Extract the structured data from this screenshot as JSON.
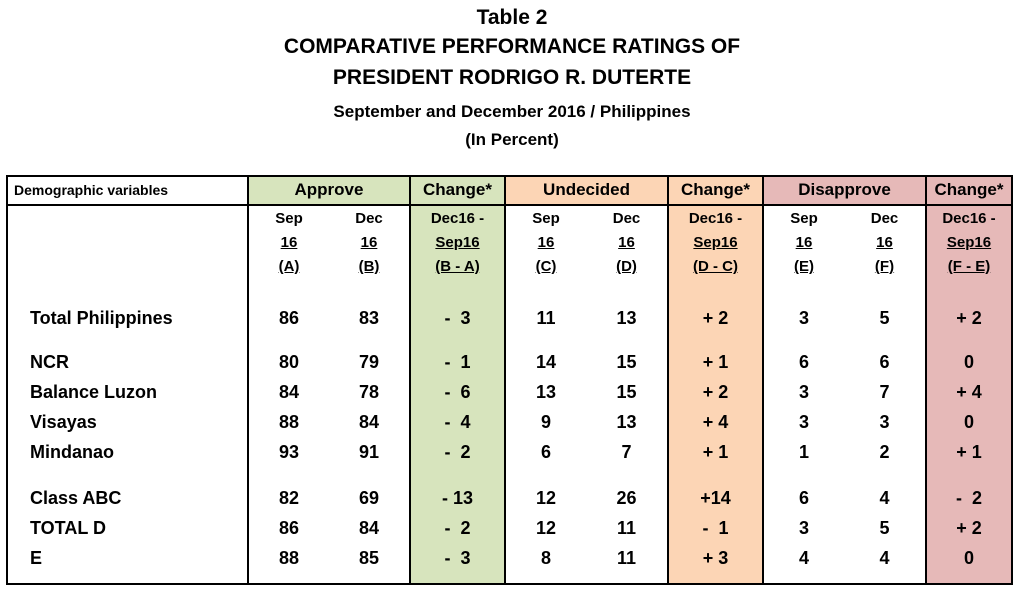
{
  "title": {
    "line1": "Table 2",
    "line2": "COMPARATIVE PERFORMANCE RATINGS OF",
    "line3": "PRESIDENT RODRIGO R. DUTERTE",
    "line4": "September and December 2016 / Philippines",
    "line5": "(In Percent)"
  },
  "colors": {
    "approve": "#d7e4bd",
    "undecided": "#fcd5b5",
    "disapprove": "#e6b9b8"
  },
  "header": {
    "demographic": "Demographic variables",
    "approve": "Approve",
    "change1": "Change*",
    "undecided": "Undecided",
    "change2": "Change*",
    "disapprove": "Disapprove",
    "change3": "Change*"
  },
  "subheaders": [
    [
      "Sep",
      "16",
      "(A)"
    ],
    [
      "Dec",
      "16",
      "(B)"
    ],
    [
      "Dec16 -",
      "Sep16",
      "(B - A)"
    ],
    [
      "Sep",
      "16",
      "(C)"
    ],
    [
      "Dec",
      "16",
      "(D)"
    ],
    [
      "Dec16 -",
      "Sep16",
      "(D - C)"
    ],
    [
      "Sep",
      "16",
      "(E)"
    ],
    [
      "Dec",
      "16",
      "(F)"
    ],
    [
      "Dec16 -",
      "Sep16",
      "(F - E)"
    ]
  ],
  "rows": [
    {
      "label": "Total Philippines",
      "values": [
        "86",
        "83",
        "-  3",
        "11",
        "13",
        "+ 2",
        "3",
        "5",
        "+ 2"
      ]
    },
    {
      "label": "NCR",
      "values": [
        "80",
        "79",
        "-  1",
        "14",
        "15",
        "+ 1",
        "6",
        "6",
        "0"
      ]
    },
    {
      "label": "Balance Luzon",
      "values": [
        "84",
        "78",
        "-  6",
        "13",
        "15",
        "+ 2",
        "3",
        "7",
        "+ 4"
      ]
    },
    {
      "label": "Visayas",
      "values": [
        "88",
        "84",
        "-  4",
        "9",
        "13",
        "+ 4",
        "3",
        "3",
        "0"
      ]
    },
    {
      "label": "Mindanao",
      "values": [
        "93",
        "91",
        "-  2",
        "6",
        "7",
        "+ 1",
        "1",
        "2",
        "+ 1"
      ]
    },
    {
      "label": "Class ABC",
      "values": [
        "82",
        "69",
        "- 13",
        "12",
        "26",
        "+14",
        "6",
        "4",
        "-  2"
      ]
    },
    {
      "label": "TOTAL D",
      "values": [
        "86",
        "84",
        "-  2",
        "12",
        "11",
        "-  1",
        "3",
        "5",
        "+ 2"
      ]
    },
    {
      "label": "E",
      "values": [
        "88",
        "85",
        "-  3",
        "8",
        "11",
        "+ 3",
        "4",
        "4",
        "0"
      ]
    }
  ]
}
